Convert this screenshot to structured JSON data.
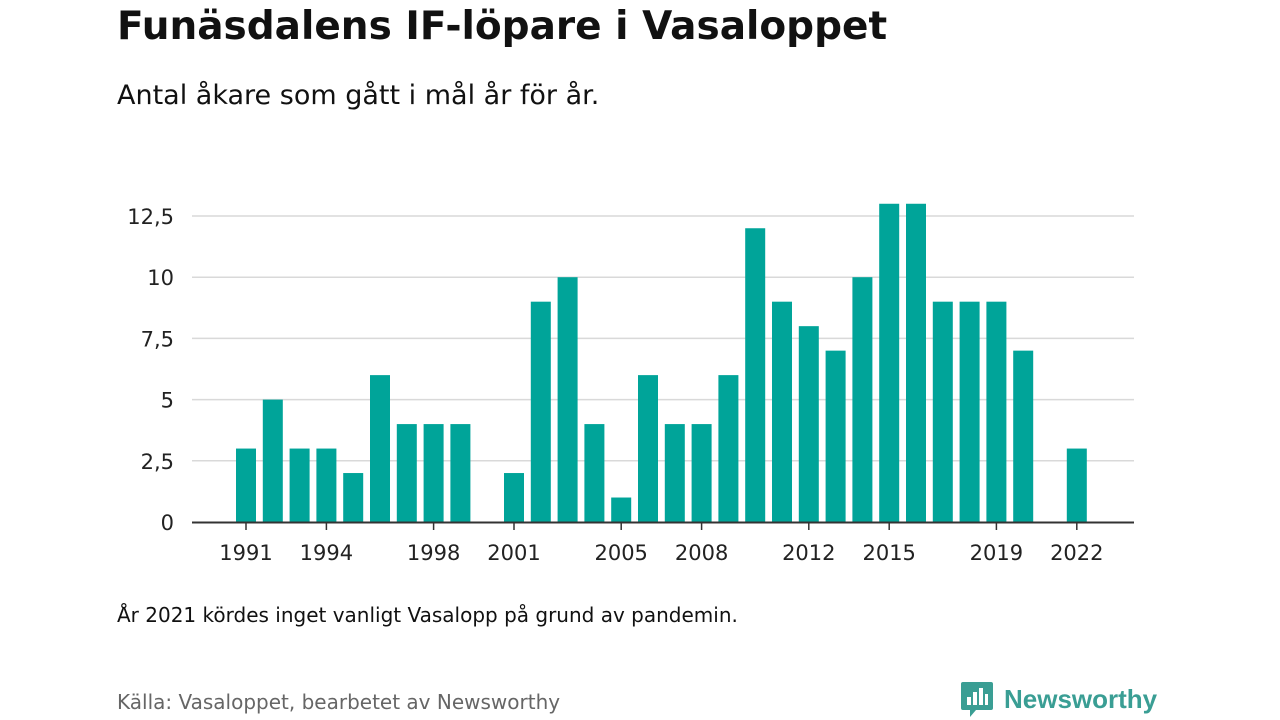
{
  "header": {
    "title": "Funäsdalens IF-löpare i Vasaloppet",
    "subtitle": "Antal åkare som gått i mål år för år."
  },
  "footer": {
    "note": "År 2021 kördes inget vanligt Vasalopp på grund av pandemin.",
    "source": "Källa: Vasaloppet, bearbetet av Newsworthy",
    "brand": "Newsworthy"
  },
  "colors": {
    "bar": "#00a499",
    "grid": "#d9d9d9",
    "axis": "#333333",
    "brand": "#3a9e94"
  },
  "icons": {
    "brand_logo": "bar-chart-speech-bubble-icon"
  },
  "chart_data": {
    "type": "bar",
    "title": "Funäsdalens IF-löpare i Vasaloppet",
    "subtitle": "Antal åkare som gått i mål år för år.",
    "xlabel": "",
    "ylabel": "",
    "categories": [
      1991,
      1992,
      1993,
      1994,
      1995,
      1996,
      1997,
      1998,
      1999,
      2000,
      2001,
      2002,
      2003,
      2004,
      2005,
      2006,
      2007,
      2008,
      2009,
      2010,
      2011,
      2012,
      2013,
      2014,
      2015,
      2016,
      2017,
      2018,
      2019,
      2020,
      2021,
      2022
    ],
    "values": [
      3,
      5,
      3,
      3,
      2,
      6,
      4,
      4,
      4,
      null,
      2,
      9,
      10,
      4,
      1,
      6,
      4,
      4,
      6,
      12,
      9,
      8,
      7,
      10,
      13,
      13,
      9,
      9,
      9,
      7,
      null,
      3
    ],
    "x_tick_labels": [
      "1991",
      "1994",
      "1998",
      "2001",
      "2005",
      "2008",
      "2012",
      "2015",
      "2019",
      "2022"
    ],
    "y_ticks": [
      0,
      2.5,
      5,
      7.5,
      10,
      12.5
    ],
    "y_tick_labels": [
      "0",
      "2,5",
      "5",
      "7,5",
      "10",
      "12,5"
    ],
    "ylim": [
      0,
      13
    ],
    "grid": true,
    "legend": "none"
  }
}
